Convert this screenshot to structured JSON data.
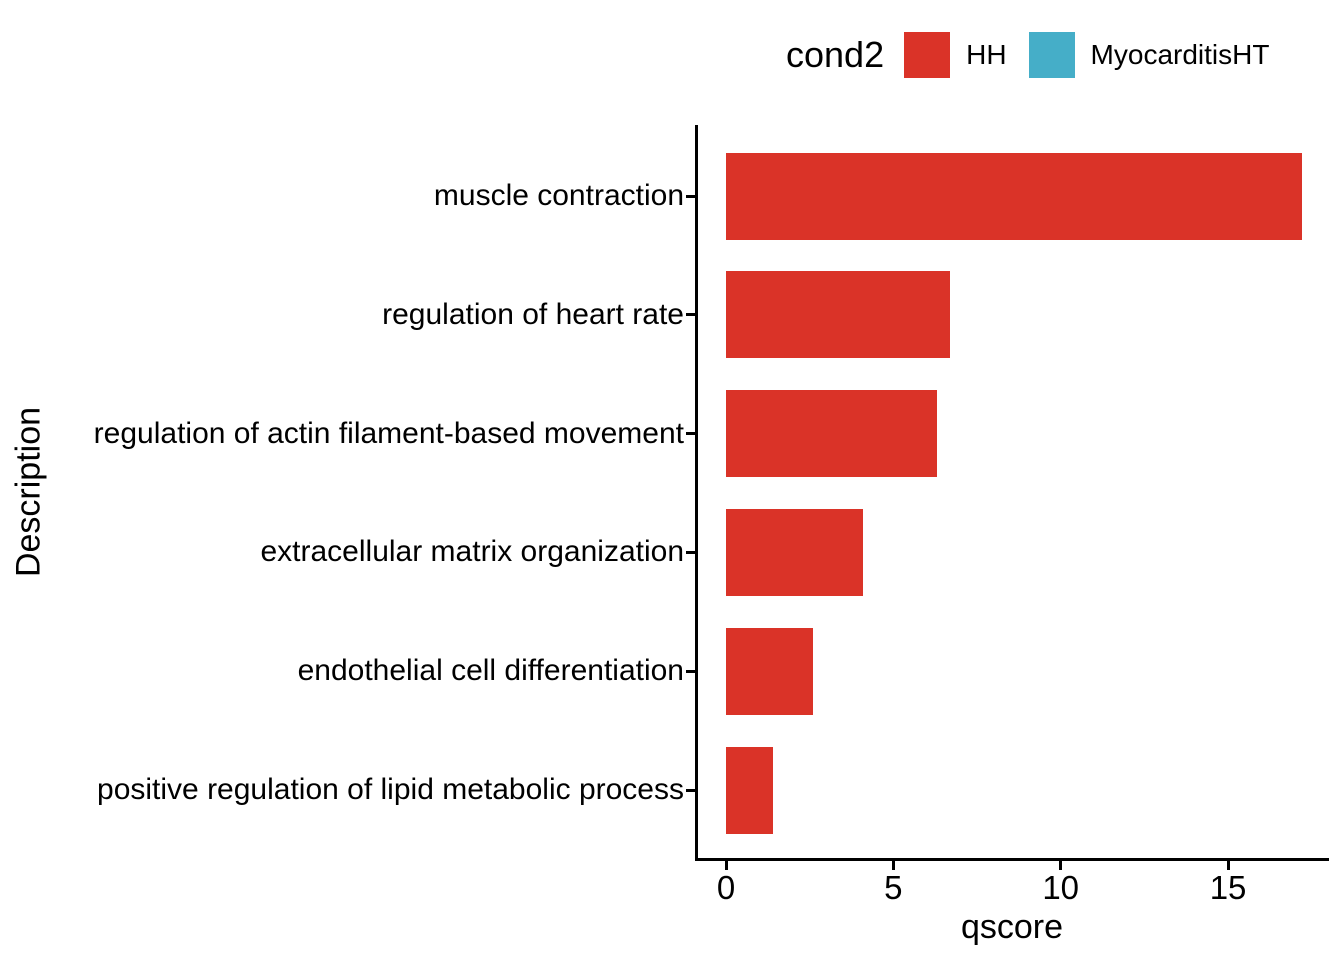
{
  "legend": {
    "title": "cond2",
    "items": [
      {
        "label": "HH",
        "color": "#DA3328"
      },
      {
        "label": "MyocarditisHT",
        "color": "#45AEC8"
      }
    ]
  },
  "axes": {
    "x_title": "qscore",
    "y_title": "Description",
    "x_tick_labels": [
      "0",
      "5",
      "10",
      "15"
    ]
  },
  "chart_data": {
    "type": "bar",
    "orientation": "horizontal",
    "title": "",
    "xlabel": "qscore",
    "ylabel": "Description",
    "categories": [
      "muscle contraction",
      "regulation of heart rate",
      "regulation of actin filament-based movement",
      "extracellular matrix organization",
      "endothelial cell differentiation",
      "positive regulation of lipid metabolic process"
    ],
    "series": [
      {
        "name": "HH",
        "color": "#DA3328",
        "values": [
          17.2,
          6.7,
          6.3,
          4.1,
          2.6,
          1.4
        ]
      },
      {
        "name": "MyocarditisHT",
        "color": "#45AEC8",
        "values": []
      }
    ],
    "x_ticks": [
      0,
      5,
      10,
      15
    ],
    "xlim": [
      0,
      17.2
    ],
    "grid": false,
    "legend_position": "top",
    "theme": "classic"
  }
}
